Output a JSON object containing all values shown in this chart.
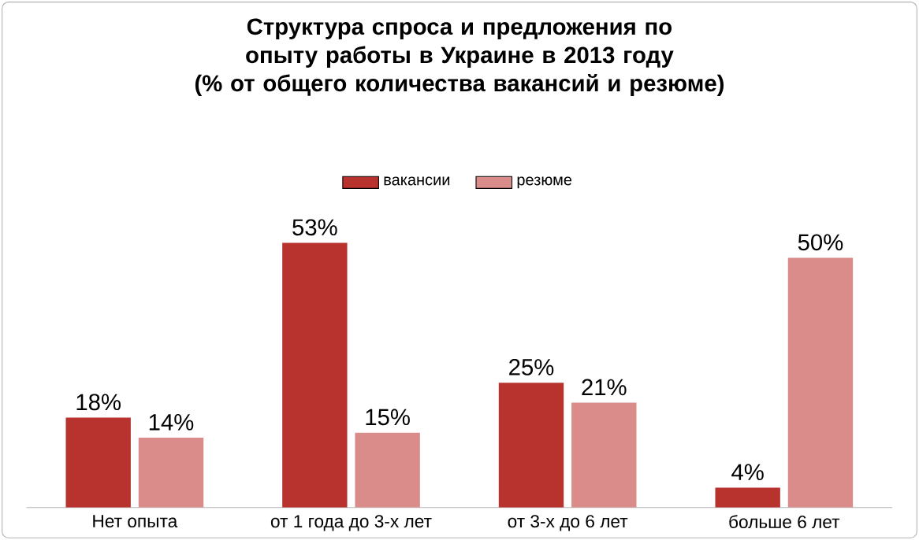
{
  "chart_data": {
    "type": "bar",
    "title": "Структура спроса и предложения по опыту работы в Украине в 2013 году",
    "subtitle": "(% от общего количества вакансий и резюме)",
    "categories": [
      "Нет опыта",
      "от 1 года до 3-х лет",
      "от 3-х до 6 лет",
      "больше 6 лет"
    ],
    "series": [
      {
        "name": "вакансии",
        "color": "#b8322e",
        "values": [
          18,
          53,
          25,
          4
        ],
        "value_labels": [
          "18%",
          "53%",
          "25%",
          "4%"
        ]
      },
      {
        "name": "резюме",
        "color": "#d98c8a",
        "values": [
          14,
          15,
          21,
          50
        ],
        "value_labels": [
          "14%",
          "15%",
          "21%",
          "50%"
        ]
      }
    ],
    "legend": "top"
  }
}
